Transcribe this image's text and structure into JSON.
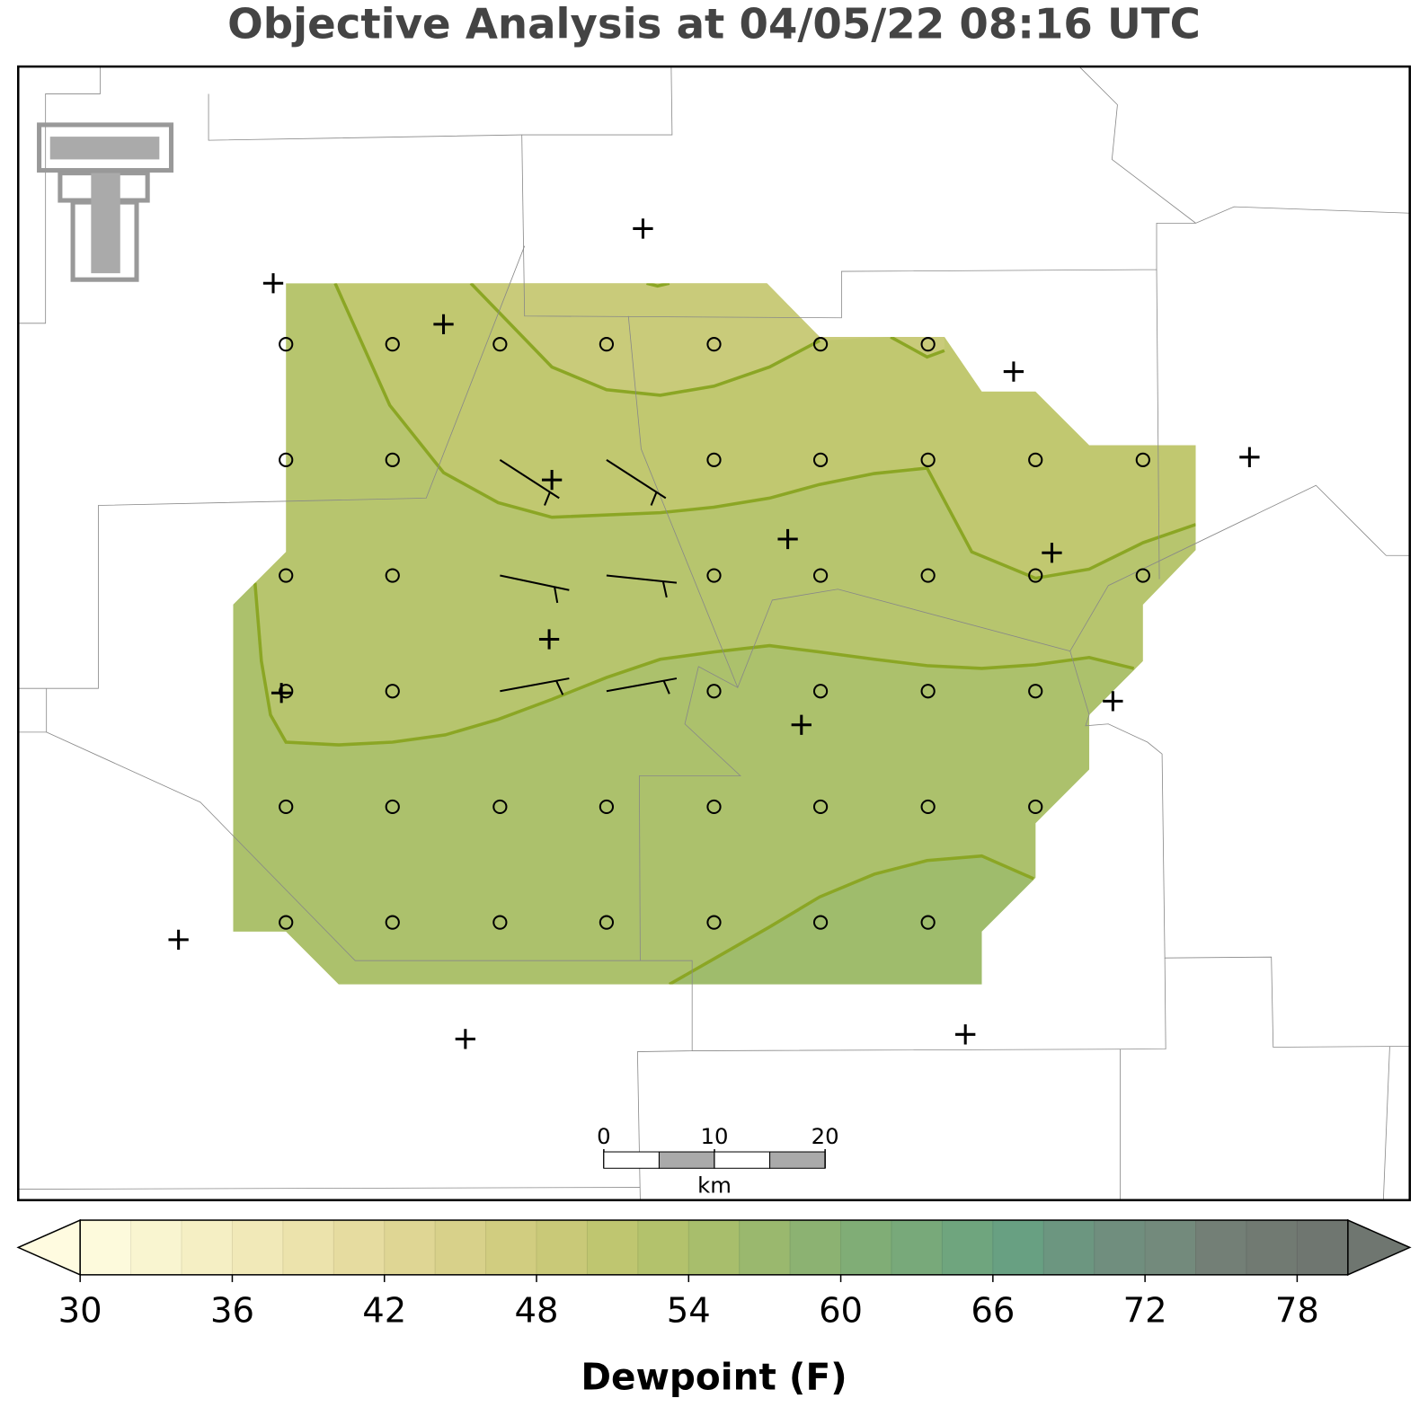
{
  "title": "Objective Analysis at 04/05/22 08:16 UTC",
  "scale_bar": {
    "ticks": [
      0,
      10,
      20
    ],
    "unit": "km"
  },
  "colorbar": {
    "label": "Dewpoint (F)",
    "lim": [
      30,
      80
    ],
    "ticks": [
      30,
      36,
      42,
      48,
      54,
      60,
      66,
      72,
      78
    ],
    "bins": [
      30,
      32,
      34,
      36,
      38,
      40,
      42,
      44,
      46,
      48,
      50,
      52,
      54,
      56,
      58,
      60,
      62,
      64,
      66,
      68,
      70,
      72,
      74,
      76,
      78,
      80
    ],
    "colors": [
      "#fdfadc",
      "#f9f5d0",
      "#f5efc4",
      "#f1e9b8",
      "#ece3ac",
      "#e6dca0",
      "#dfd694",
      "#d8d18a",
      "#d1cd80",
      "#c9c978",
      "#bfc670",
      "#b3c26c",
      "#a8be6c",
      "#9ab86e",
      "#8cb272",
      "#80ad76",
      "#78a97a",
      "#6fa57e",
      "#68a082",
      "#6c9680",
      "#708e7e",
      "#738a7c",
      "#737f76",
      "#717a72",
      "#6f7670"
    ],
    "under_color": "#fffbe0",
    "over_color": "#6f7670"
  }
}
